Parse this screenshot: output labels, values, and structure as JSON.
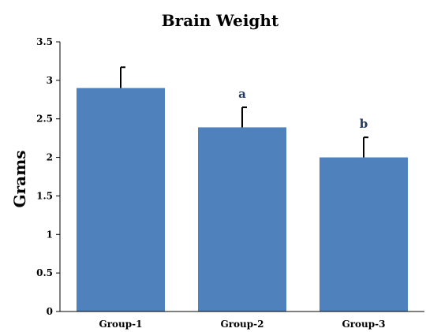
{
  "chart_data": {
    "type": "bar",
    "title": "Brain Weight",
    "xlabel": "",
    "ylabel": "Grams",
    "categories": [
      "Group-1",
      "Group-2",
      "Group-3"
    ],
    "values": [
      2.9,
      2.39,
      2.0
    ],
    "error": [
      0.27,
      0.26,
      0.26
    ],
    "annotations": [
      "",
      "a",
      "b"
    ],
    "ylim": [
      0,
      3.5
    ],
    "yticks": [
      "0",
      "0.5",
      "1",
      "1.5",
      "2",
      "2.5",
      "3",
      "3.5"
    ],
    "ytick_values": [
      0,
      0.5,
      1,
      1.5,
      2,
      2.5,
      3,
      3.5
    ],
    "grid": false,
    "bar_color": "#4f81bd"
  }
}
